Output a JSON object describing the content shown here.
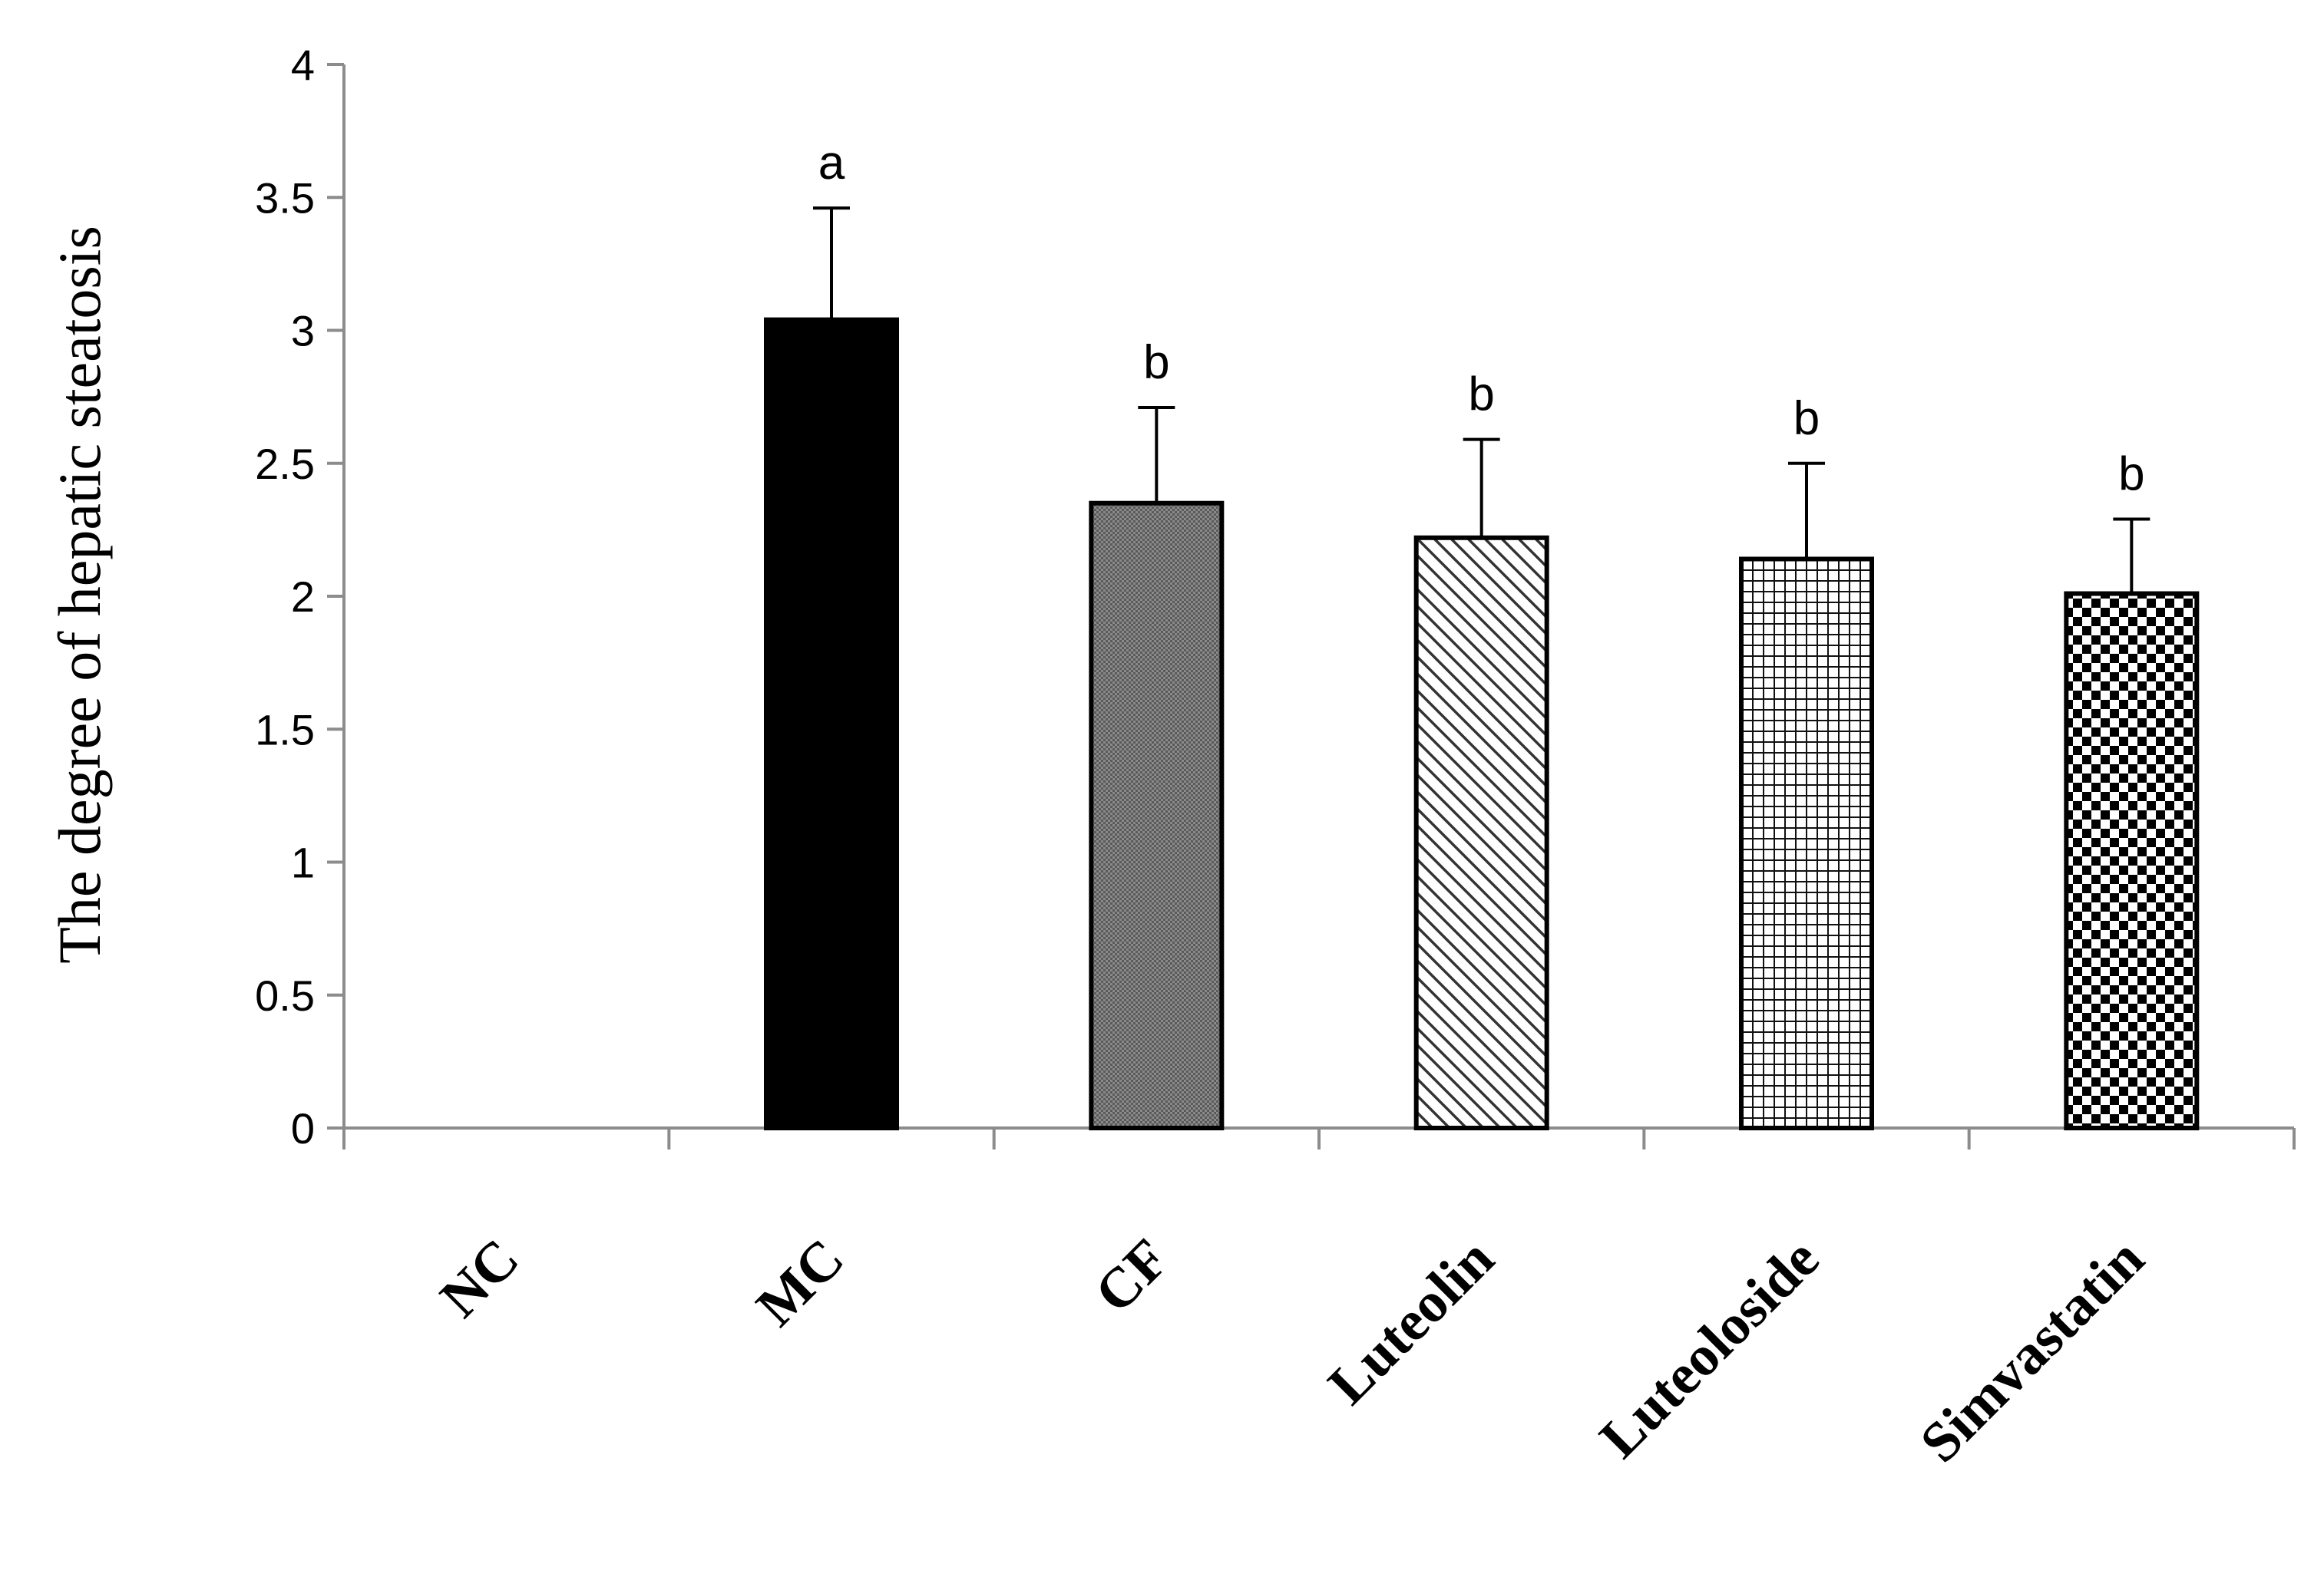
{
  "chart_data": {
    "type": "bar",
    "title": "",
    "xlabel": "",
    "ylabel": "The degree of hepatic steatosis",
    "categories": [
      "NC",
      "MC",
      "CF",
      "Luteolin",
      "Luteoloside",
      "Simvastatin"
    ],
    "values": [
      0,
      3.04,
      2.35,
      2.22,
      2.14,
      2.01
    ],
    "error_upper": [
      0,
      0.42,
      0.36,
      0.37,
      0.36,
      0.28
    ],
    "significance": [
      "",
      "a",
      "b",
      "b",
      "b",
      "b"
    ],
    "fills": [
      "solid-white",
      "solid-black",
      "dense-gray",
      "diagonal-hatch",
      "fine-grid",
      "checkerboard"
    ],
    "ylim": [
      0,
      4
    ],
    "yticks": [
      0,
      0.5,
      1,
      1.5,
      2,
      2.5,
      3,
      3.5,
      4
    ],
    "ytick_labels": [
      "0",
      "0.5",
      "1",
      "1.5",
      "2",
      "2.5",
      "3",
      "3.5",
      "4"
    ],
    "grid": false,
    "colors": {
      "axis": "#8c8c8c",
      "bar_stroke": "#000000",
      "mc_fill": "#000000",
      "background": "#ffffff"
    }
  }
}
